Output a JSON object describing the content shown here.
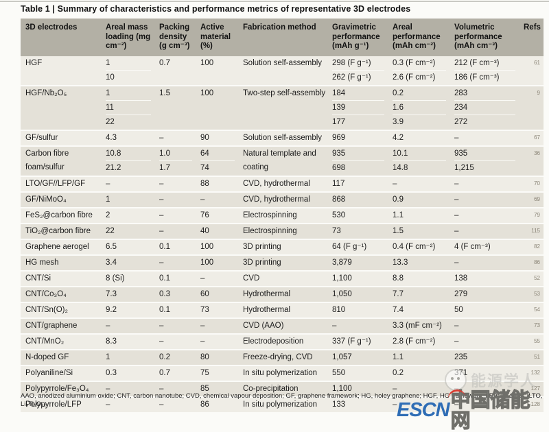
{
  "table": {
    "title": "Table 1 | Summary of characteristics and performance metrics of representative 3D electrodes",
    "columns": [
      {
        "key": "electrode",
        "label": "3D electrodes"
      },
      {
        "key": "loading",
        "label": "Areal mass loading (mg cm⁻²)"
      },
      {
        "key": "packing",
        "label": "Packing density (g cm⁻³)"
      },
      {
        "key": "active",
        "label": "Active material (%)"
      },
      {
        "key": "fabrication",
        "label": "Fabrication method"
      },
      {
        "key": "gravimetric",
        "label": "Gravimetric performance (mAh g⁻¹)"
      },
      {
        "key": "areal",
        "label": "Areal performance (mAh cm⁻²)"
      },
      {
        "key": "volumetric",
        "label": "Volumetric performance (mAh cm⁻³)"
      },
      {
        "key": "ref",
        "label": "Refs"
      }
    ],
    "rows": [
      {
        "electrode": "HGF",
        "loading": [
          "1",
          "10"
        ],
        "packing": "0.7",
        "active": "100",
        "fabrication": "Solution self-assembly",
        "gravimetric": [
          "298 (F g⁻¹)",
          "262 (F g⁻¹)"
        ],
        "areal": [
          "0.3 (F cm⁻²)",
          "2.6 (F cm⁻²)"
        ],
        "volumetric": [
          "212 (F cm⁻³)",
          "186 (F cm⁻³)"
        ],
        "ref": "61"
      },
      {
        "electrode": "HGF/Nb₂O₅",
        "loading": [
          "1",
          "11",
          "22"
        ],
        "packing": "1.5",
        "active": "100",
        "fabrication": "Two-step self-assembly",
        "gravimetric": [
          "184",
          "139",
          "177"
        ],
        "areal": [
          "0.2",
          "1.6",
          "3.9"
        ],
        "volumetric": [
          "283",
          "234",
          "272"
        ],
        "ref": "9"
      },
      {
        "electrode": "GF/sulfur",
        "loading": "4.3",
        "packing": "–",
        "active": "90",
        "fabrication": "Solution self-assembly",
        "gravimetric": "969",
        "areal": "4.2",
        "volumetric": "–",
        "ref": "67"
      },
      {
        "electrode": "Carbon fibre foam/sulfur",
        "loading": [
          "10.8",
          "21.2"
        ],
        "packing": [
          "1.0",
          "1.7"
        ],
        "active": [
          "64",
          "74"
        ],
        "fabrication": "Natural template and coating",
        "gravimetric": [
          "935",
          "698"
        ],
        "areal": [
          "10.1",
          "14.8"
        ],
        "volumetric": [
          "935",
          "1,215"
        ],
        "ref": "36"
      },
      {
        "electrode": "LTO/GF//LFP/GF",
        "loading": "–",
        "packing": "–",
        "active": "88",
        "fabrication": "CVD, hydrothermal",
        "gravimetric": "117",
        "areal": "–",
        "volumetric": "–",
        "ref": "70"
      },
      {
        "electrode": "GF/NiMoO₄",
        "loading": "1",
        "packing": "–",
        "active": "–",
        "fabrication": "CVD, hydrothermal",
        "gravimetric": "868",
        "areal": "0.9",
        "volumetric": "–",
        "ref": "69"
      },
      {
        "electrode": "FeS₂@carbon fibre",
        "loading": "2",
        "packing": "–",
        "active": "76",
        "fabrication": "Electrospinning",
        "gravimetric": "530",
        "areal": "1.1",
        "volumetric": "–",
        "ref": "79"
      },
      {
        "electrode": "TiO₂@carbon fibre",
        "loading": "22",
        "packing": "–",
        "active": "40",
        "fabrication": "Electrospinning",
        "gravimetric": "73",
        "areal": "1.5",
        "volumetric": "–",
        "ref": "115"
      },
      {
        "electrode": "Graphene aerogel",
        "loading": "6.5",
        "packing": "0.1",
        "active": "100",
        "fabrication": "3D printing",
        "gravimetric": "64 (F g⁻¹)",
        "areal": "0.4 (F cm⁻²)",
        "volumetric": "4 (F cm⁻³)",
        "ref": "82"
      },
      {
        "electrode": "HG mesh",
        "loading": "3.4",
        "packing": "–",
        "active": "100",
        "fabrication": "3D printing",
        "gravimetric": "3,879",
        "areal": "13.3",
        "volumetric": "–",
        "ref": "86"
      },
      {
        "electrode": "CNT/Si",
        "loading": "8 (Si)",
        "packing": "0.1",
        "active": "–",
        "fabrication": "CVD",
        "gravimetric": "1,100",
        "areal": "8.8",
        "volumetric": "138",
        "ref": "52"
      },
      {
        "electrode": "CNT/Co₃O₄",
        "loading": "7.3",
        "packing": "0.3",
        "active": "60",
        "fabrication": "Hydrothermal",
        "gravimetric": "1,050",
        "areal": "7.7",
        "volumetric": "279",
        "ref": "53"
      },
      {
        "electrode": "CNT/Sn(O)₂",
        "loading": "9.2",
        "packing": "0.1",
        "active": "73",
        "fabrication": "Hydrothermal",
        "gravimetric": "810",
        "areal": "7.4",
        "volumetric": "50",
        "ref": "54"
      },
      {
        "electrode": "CNT/graphene",
        "loading": "–",
        "packing": "–",
        "active": "–",
        "fabrication": "CVD (AAO)",
        "gravimetric": "–",
        "areal": "3.3 (mF cm⁻²)",
        "volumetric": "–",
        "ref": "73"
      },
      {
        "electrode": "CNT/MnO₂",
        "loading": "8.3",
        "packing": "–",
        "active": "–",
        "fabrication": "Electrodeposition",
        "gravimetric": "337 (F g⁻¹)",
        "areal": "2.8 (F cm⁻²)",
        "volumetric": "–",
        "ref": "55"
      },
      {
        "electrode": "N-doped GF",
        "loading": "1",
        "packing": "0.2",
        "active": "80",
        "fabrication": "Freeze-drying, CVD",
        "gravimetric": "1,057",
        "areal": "1.1",
        "volumetric": "235",
        "ref": "51"
      },
      {
        "electrode": "Polyaniline/Si",
        "loading": "0.3",
        "packing": "0.7",
        "active": "75",
        "fabrication": "In situ polymerization",
        "gravimetric": "550",
        "areal": "0.2",
        "volumetric": "371",
        "ref": "132"
      },
      {
        "electrode": "Polypyrrole/Fe₃O₄",
        "loading": "–",
        "packing": "–",
        "active": "85",
        "fabrication": "Co-precipitation",
        "gravimetric": "1,100",
        "areal": "–",
        "volumetric": "–",
        "ref": "127"
      },
      {
        "electrode": "Polypyrrole/LFP",
        "loading": "–",
        "packing": "–",
        "active": "86",
        "fabrication": "In situ polymerization",
        "gravimetric": "133",
        "areal": "–",
        "volumetric": "–",
        "ref": "128"
      }
    ],
    "footnote": "AAO, anodized aluminium oxide; CNT, carbon nanotube; CVD, chemical vapour deposition; GF, graphene framework; HG, holey graphene; HGF, HG framework; LFP, LiFePO₄; LTO, Li₄Ti₅O₁₂."
  },
  "watermarks": {
    "energy_scholar": "能源学人",
    "escn_latin": "ESCN",
    "escn_cjk": "中国储能网"
  },
  "colors": {
    "header_bg": "#b3b0a5",
    "row_light": "#efede6",
    "row_dark": "#e4e1d8",
    "escn_blue": "#2f6db5",
    "escn_red": "#d93a2f"
  }
}
